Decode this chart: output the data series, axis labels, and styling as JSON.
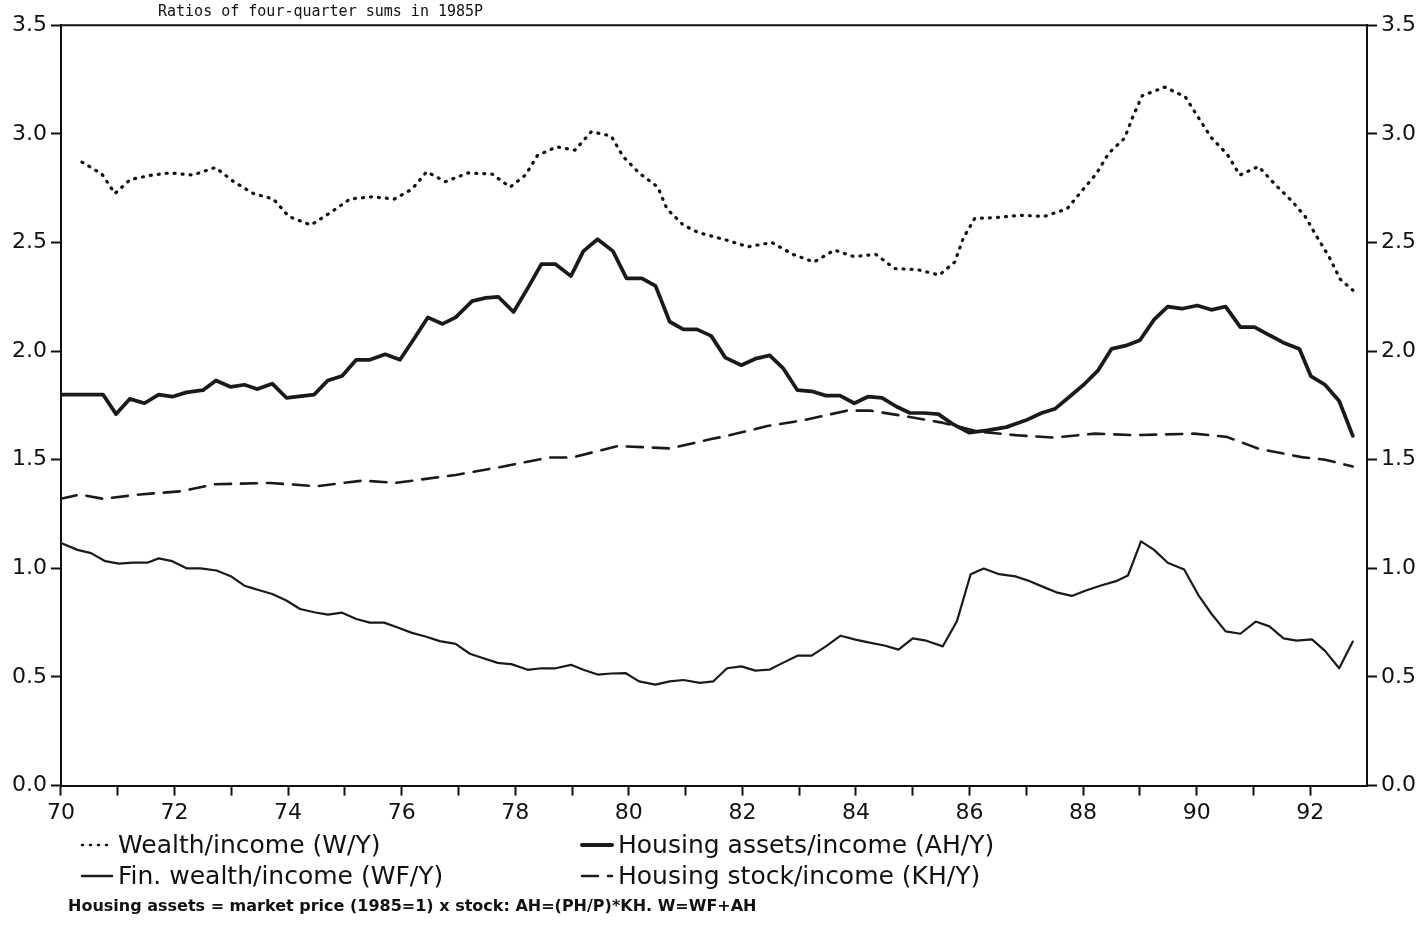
{
  "chart_data": {
    "type": "line",
    "title": "Ratios of four-quarter sums in 1985P",
    "xlim": [
      70,
      93
    ],
    "xticks": [
      70,
      {
        "value": 71,
        "label": null
      },
      72,
      {
        "value": 73,
        "label": null
      },
      74,
      {
        "value": 75,
        "label": null
      },
      76,
      {
        "value": 77,
        "label": null
      },
      78,
      {
        "value": 79,
        "label": null
      },
      80,
      {
        "value": 81,
        "label": null
      },
      82,
      {
        "value": 83,
        "label": null
      },
      84,
      {
        "value": 85,
        "label": null
      },
      86,
      {
        "value": 87,
        "label": null
      },
      88,
      {
        "value": 89,
        "label": null
      },
      90,
      {
        "value": 91,
        "label": null
      },
      92
    ],
    "ylim": [
      0,
      3.5
    ],
    "yticks": [
      {
        "value": 0,
        "label": "0.0"
      },
      0.5,
      {
        "value": 1,
        "label": "1.0"
      },
      1.5,
      {
        "value": 2,
        "label": "2.0"
      },
      2.5,
      {
        "value": 3,
        "label": "3.0"
      },
      3.5
    ],
    "y2lim": [
      0,
      3.5
    ],
    "y2ticks": [
      {
        "value": 0,
        "label": "0.0"
      },
      0.5,
      {
        "value": 1,
        "label": "1.0"
      },
      1.5,
      {
        "value": 2,
        "label": "2.0"
      },
      2.5,
      {
        "value": 3,
        "label": "3.0"
      },
      3.5
    ],
    "grid": false,
    "legend": "bottom",
    "marker": "none",
    "annotations": [
      "Housing assets = market price (1985=1) x stock: AH=(PH/P)*KH. W=WF+AH"
    ],
    "series": [
      {
        "name": "Wealth/income (W/Y)",
        "color": "#111111",
        "line_style": "dotted",
        "x": [
          70.37,
          70.72,
          70.95,
          71.22,
          71.6,
          71.92,
          72.32,
          72.72,
          73.04,
          73.39,
          73.74,
          74.01,
          74.4,
          74.76,
          75.09,
          75.48,
          75.87,
          76.18,
          76.44,
          76.77,
          77.17,
          77.59,
          77.91,
          78.18,
          78.39,
          78.73,
          79.05,
          79.34,
          79.69,
          79.9,
          80.18,
          80.51,
          80.67,
          80.96,
          81.23,
          81.73,
          82.1,
          82.52,
          82.89,
          83.26,
          83.62,
          83.96,
          84.35,
          84.68,
          85.08,
          85.47,
          85.74,
          85.89,
          86.09,
          86.48,
          86.89,
          87.32,
          87.72,
          87.97,
          88.23,
          88.45,
          88.73,
          88.87,
          89.04,
          89.44,
          89.8,
          90.03,
          90.25,
          90.54,
          90.76,
          91.09,
          91.37,
          91.66,
          91.91,
          92.12,
          92.33,
          92.53,
          92.75
        ],
        "values": [
          2.87,
          2.815,
          2.725,
          2.79,
          2.81,
          2.82,
          2.81,
          2.845,
          2.78,
          2.725,
          2.7,
          2.62,
          2.58,
          2.64,
          2.7,
          2.71,
          2.7,
          2.745,
          2.825,
          2.78,
          2.82,
          2.815,
          2.755,
          2.81,
          2.9,
          2.94,
          2.925,
          3.01,
          2.99,
          2.895,
          2.82,
          2.755,
          2.655,
          2.58,
          2.545,
          2.51,
          2.48,
          2.5,
          2.445,
          2.41,
          2.465,
          2.435,
          2.445,
          2.38,
          2.375,
          2.35,
          2.41,
          2.52,
          2.61,
          2.615,
          2.625,
          2.62,
          2.655,
          2.735,
          2.815,
          2.91,
          2.98,
          3.075,
          3.175,
          3.215,
          3.17,
          3.075,
          2.985,
          2.905,
          2.81,
          2.85,
          2.77,
          2.695,
          2.62,
          2.525,
          2.435,
          2.33,
          2.28
        ]
      },
      {
        "name": "Housing assets/income (AH/Y)",
        "color": "#1a1a1a",
        "line_style": "solid",
        "x": [
          70,
          70.74,
          70.97,
          71.21,
          71.47,
          71.72,
          71.96,
          72.21,
          72.5,
          72.73,
          72.99,
          73.23,
          73.46,
          73.72,
          73.97,
          74.46,
          74.7,
          74.95,
          75.2,
          75.44,
          75.71,
          75.97,
          76.2,
          76.46,
          76.72,
          76.95,
          77.24,
          77.48,
          77.7,
          77.97,
          78.22,
          78.46,
          78.71,
          78.98,
          79.2,
          79.45,
          79.72,
          79.96,
          80.23,
          80.47,
          80.72,
          80.96,
          81.2,
          81.45,
          81.7,
          81.98,
          82.23,
          82.48,
          82.72,
          82.97,
          83.22,
          83.47,
          83.72,
          83.97,
          84.21,
          84.46,
          84.71,
          84.95,
          85.2,
          85.45,
          85.7,
          85.99,
          86.31,
          86.65,
          86.98,
          87.27,
          87.51,
          87.76,
          88.01,
          88.26,
          88.5,
          88.75,
          89,
          89.25,
          89.49,
          89.74,
          90.01,
          90.26,
          90.51,
          90.77,
          91.02,
          91.27,
          91.52,
          91.81,
          92.01,
          92.26,
          92.51,
          92.75
        ],
        "values": [
          1.8,
          1.8,
          1.71,
          1.78,
          1.76,
          1.8,
          1.79,
          1.81,
          1.82,
          1.865,
          1.835,
          1.845,
          1.825,
          1.85,
          1.785,
          1.8,
          1.865,
          1.885,
          1.96,
          1.96,
          1.985,
          1.96,
          2.05,
          2.155,
          2.125,
          2.155,
          2.23,
          2.245,
          2.25,
          2.18,
          2.29,
          2.4,
          2.4,
          2.345,
          2.46,
          2.515,
          2.46,
          2.335,
          2.335,
          2.3,
          2.135,
          2.1,
          2.1,
          2.07,
          1.97,
          1.935,
          1.965,
          1.98,
          1.92,
          1.82,
          1.815,
          1.795,
          1.795,
          1.76,
          1.79,
          1.785,
          1.745,
          1.715,
          1.715,
          1.71,
          1.665,
          1.625,
          1.635,
          1.65,
          1.68,
          1.715,
          1.735,
          1.79,
          1.845,
          1.91,
          2.01,
          2.025,
          2.05,
          2.145,
          2.205,
          2.195,
          2.21,
          2.19,
          2.205,
          2.11,
          2.11,
          2.075,
          2.04,
          2.01,
          1.885,
          1.845,
          1.77,
          1.61
        ]
      },
      {
        "name": "Fin. wealth/income (WF/Y)",
        "color": "#1a1a1a",
        "line_style": "solid",
        "x": [
          70,
          70.29,
          70.53,
          70.78,
          71.02,
          71.27,
          71.52,
          71.72,
          71.96,
          72.21,
          72.46,
          72.74,
          72.99,
          73.23,
          73.48,
          73.72,
          73.97,
          74.21,
          74.46,
          74.7,
          74.95,
          75.2,
          75.44,
          75.69,
          75.93,
          76.18,
          76.42,
          76.67,
          76.95,
          77.2,
          77.44,
          77.69,
          77.93,
          78.22,
          78.46,
          78.71,
          78.98,
          79.2,
          79.45,
          79.69,
          79.94,
          80.18,
          80.47,
          80.72,
          80.96,
          81.25,
          81.49,
          81.73,
          81.98,
          82.23,
          82.48,
          82.72,
          82.97,
          83.22,
          83.47,
          83.73,
          83.99,
          84.24,
          84.5,
          84.75,
          85,
          85.24,
          85.53,
          85.78,
          86.02,
          86.25,
          86.52,
          86.81,
          87.06,
          87.35,
          87.55,
          87.8,
          88.05,
          88.3,
          88.58,
          88.79,
          89.02,
          89.25,
          89.49,
          89.78,
          90.03,
          90.26,
          90.51,
          90.77,
          91.04,
          91.28,
          91.53,
          91.76,
          92.03,
          92.26,
          92.51,
          92.75
        ],
        "values": [
          1.117,
          1.085,
          1.07,
          1.033,
          1.022,
          1.026,
          1.026,
          1.046,
          1.033,
          1.0,
          1.0,
          0.99,
          0.964,
          0.92,
          0.9,
          0.882,
          0.852,
          0.813,
          0.798,
          0.787,
          0.796,
          0.767,
          0.75,
          0.75,
          0.728,
          0.703,
          0.686,
          0.665,
          0.652,
          0.607,
          0.586,
          0.565,
          0.559,
          0.533,
          0.54,
          0.54,
          0.556,
          0.533,
          0.511,
          0.516,
          0.518,
          0.48,
          0.465,
          0.48,
          0.486,
          0.473,
          0.48,
          0.54,
          0.549,
          0.529,
          0.534,
          0.566,
          0.598,
          0.598,
          0.641,
          0.69,
          0.672,
          0.658,
          0.645,
          0.626,
          0.678,
          0.667,
          0.641,
          0.758,
          0.973,
          0.999,
          0.973,
          0.963,
          0.941,
          0.909,
          0.888,
          0.873,
          0.898,
          0.92,
          0.941,
          0.967,
          1.124,
          1.085,
          1.026,
          0.995,
          0.877,
          0.791,
          0.71,
          0.699,
          0.755,
          0.733,
          0.678,
          0.667,
          0.673,
          0.62,
          0.54,
          0.663
        ]
      },
      {
        "name": "Housing stock/income (KH/Y)",
        "color": "#1a1a1a",
        "line_style": "dashed",
        "x": [
          70,
          70.33,
          70.74,
          71.39,
          72.13,
          72.7,
          73.68,
          74.5,
          75.32,
          75.89,
          76.95,
          77.77,
          78.59,
          79,
          79.81,
          80.72,
          81.45,
          81.7,
          82.44,
          83.1,
          83.84,
          84.25,
          84.75,
          85.49,
          86.15,
          86.81,
          87.47,
          88.21,
          88.87,
          89.95,
          90.53,
          91.1,
          91.85,
          92.26,
          92.75
        ],
        "values": [
          1.32,
          1.34,
          1.32,
          1.34,
          1.355,
          1.387,
          1.393,
          1.378,
          1.404,
          1.393,
          1.43,
          1.468,
          1.51,
          1.51,
          1.563,
          1.552,
          1.595,
          1.608,
          1.655,
          1.683,
          1.726,
          1.726,
          1.705,
          1.672,
          1.63,
          1.613,
          1.602,
          1.62,
          1.613,
          1.62,
          1.605,
          1.55,
          1.512,
          1.5,
          1.469
        ]
      }
    ]
  }
}
